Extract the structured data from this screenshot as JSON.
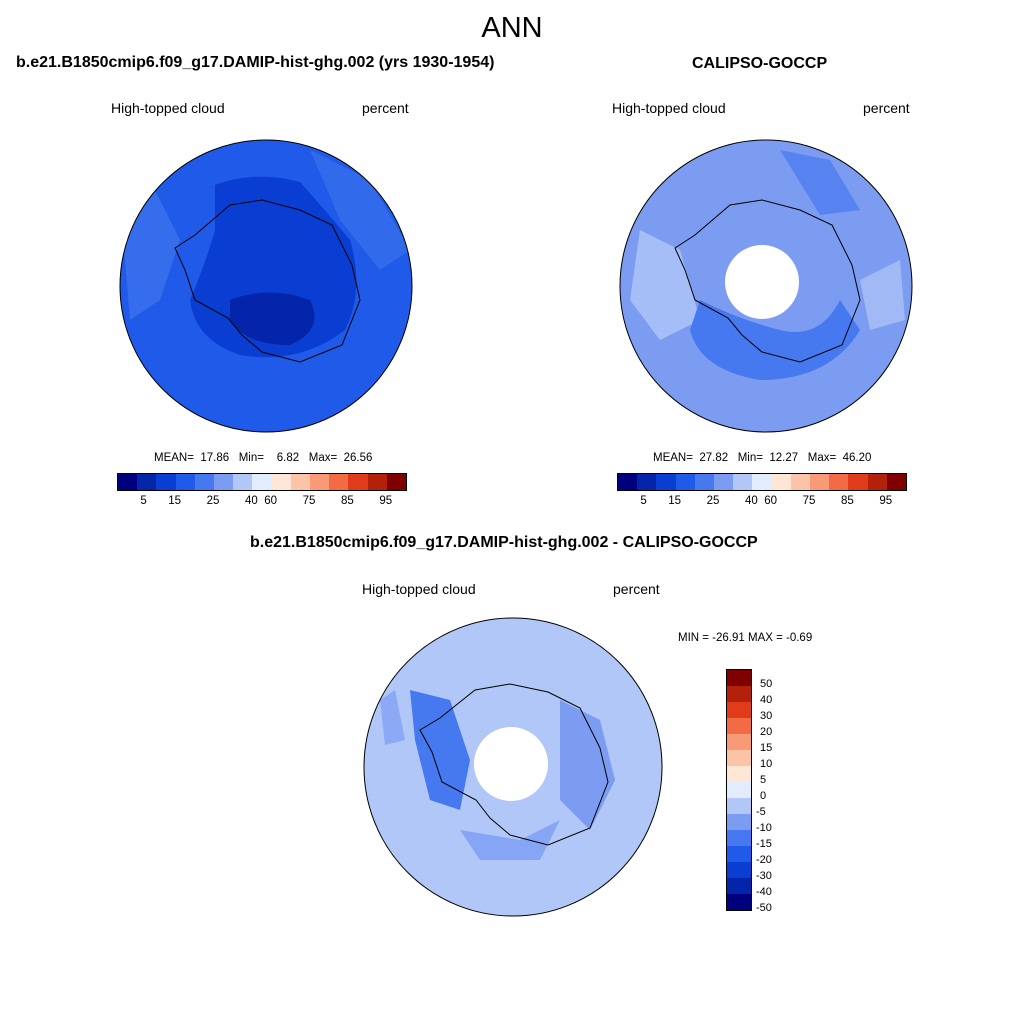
{
  "title": "ANN",
  "palette": [
    "#00007f",
    "#0424a9",
    "#0a3ed3",
    "#1f5ae8",
    "#4679ef",
    "#7c9cf2",
    "#b0c7f7",
    "#e2ecfc",
    "#fde6d6",
    "#fbc4a6",
    "#f79a75",
    "#f26b45",
    "#e03b1b",
    "#b3210a",
    "#7f0000"
  ],
  "panels": [
    {
      "title": "b.e21.B1850cmip6.f09_g17.DAMIP-hist-ghg.002 (yrs 1930-1954)",
      "variable": "High-topped cloud",
      "units": "percent",
      "stats": {
        "mean_label": "MEAN=",
        "mean": "17.86",
        "min_label": "Min=",
        "min": "6.82",
        "max_label": "Max=",
        "max": "26.56"
      },
      "colorbar_labels": [
        "5",
        "15",
        "25",
        "40",
        "60",
        "75",
        "85",
        "95"
      ]
    },
    {
      "title": "CALIPSO-GOCCP",
      "variable": "High-topped cloud",
      "units": "percent",
      "stats": {
        "mean_label": "MEAN=",
        "mean": "27.82",
        "min_label": "Min=",
        "min": "12.27",
        "max_label": "Max=",
        "max": "46.20"
      },
      "colorbar_labels": [
        "5",
        "15",
        "25",
        "40",
        "60",
        "75",
        "85",
        "95"
      ]
    }
  ],
  "diff": {
    "title": "b.e21.B1850cmip6.f09_g17.DAMIP-hist-ghg.002 - CALIPSO-GOCCP",
    "variable": "High-topped cloud",
    "units": "percent",
    "minmax": "MIN = -26.91 MAX =  -0.69",
    "colorbar_labels": [
      "50",
      "40",
      "30",
      "20",
      "15",
      "10",
      "5",
      "0",
      "-5",
      "-10",
      "-15",
      "-20",
      "-30",
      "-40",
      "-50"
    ]
  }
}
